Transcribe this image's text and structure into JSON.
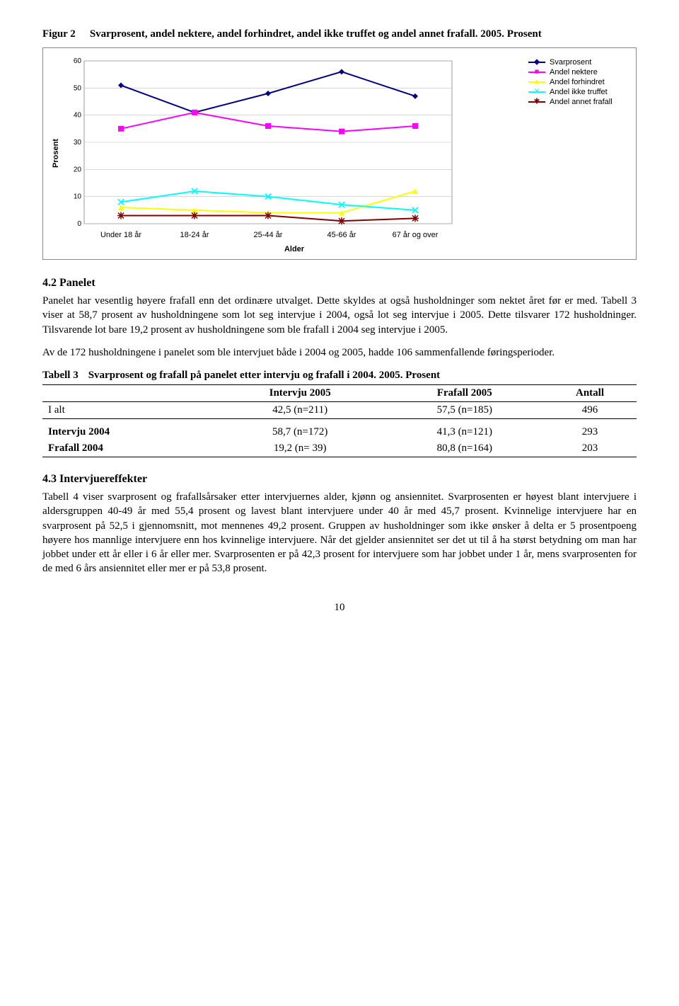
{
  "figure": {
    "label": "Figur 2",
    "caption": "Svarprosent, andel nektere, andel forhindret, andel ikke truffet og andel annet frafall. 2005. Prosent",
    "y_label": "Prosent",
    "x_label": "Alder",
    "categories": [
      "Under 18 år",
      "18-24 år",
      "25-44 år",
      "45-66 år",
      "67 år og over"
    ],
    "ylim": [
      0,
      60
    ],
    "ytick_step": 10,
    "background_color": "#ffffff",
    "grid_color": "#c0c0c0",
    "border_color": "#888888",
    "font_family": "Arial",
    "label_fontsize": 11,
    "series": [
      {
        "name": "Svarprosent",
        "color": "#000080",
        "marker": "diamond",
        "values": [
          51,
          41,
          48,
          56,
          47
        ]
      },
      {
        "name": "Andel nektere",
        "color": "#ff00ff",
        "marker": "square",
        "values": [
          35,
          41,
          36,
          34,
          36
        ]
      },
      {
        "name": "Andel forhindret",
        "color": "#ffff00",
        "marker": "triangle",
        "values": [
          6,
          5,
          4,
          4,
          12
        ]
      },
      {
        "name": "Andel ikke truffet",
        "color": "#00ffff",
        "marker": "x",
        "values": [
          8,
          12,
          10,
          7,
          5
        ]
      },
      {
        "name": "Andel annet frafall",
        "color": "#800000",
        "marker": "star",
        "values": [
          3,
          3,
          3,
          1,
          2
        ]
      }
    ]
  },
  "section42": {
    "heading": "4.2   Panelet",
    "p1": "Panelet har vesentlig høyere frafall enn det ordinære utvalget. Dette skyldes at også husholdninger som nektet året før er med. Tabell 3 viser at 58,7 prosent av husholdningene som lot seg intervjue i 2004, også lot seg intervjue i 2005. Dette tilsvarer 172 husholdninger. Tilsvarende lot bare 19,2 prosent av husholdningene som ble frafall i 2004 seg intervjue i 2005.",
    "p2": "Av de 172 husholdningene i panelet som ble intervjuet både i 2004 og 2005, hadde 106 sammenfallende føringsperioder."
  },
  "table3": {
    "label": "Tabell 3",
    "caption": "Svarprosent og frafall på panelet etter intervju og frafall i 2004. 2005. Prosent",
    "columns": [
      "",
      "Intervju 2005",
      "Frafall 2005",
      "Antall"
    ],
    "rows": [
      {
        "label": "I alt",
        "c1": "42,5 (n=211)",
        "c2": "57,5 (n=185)",
        "c3": "496"
      },
      {
        "label": "Intervju 2004",
        "c1": "58,7 (n=172)",
        "c2": "41,3 (n=121)",
        "c3": "293"
      },
      {
        "label": "Frafall 2004",
        "c1": "19,2 (n=  39)",
        "c2": "80,8 (n=164)",
        "c3": "203"
      }
    ]
  },
  "section43": {
    "heading": "4.3   Intervjuereffekter",
    "p1": "Tabell 4 viser svarprosent og frafallsårsaker etter intervjuernes alder, kjønn og ansiennitet. Svarprosenten er høyest blant intervjuere i aldersgruppen 40-49 år med 55,4 prosent og lavest blant intervjuere under 40 år med 45,7 prosent. Kvinnelige intervjuere har en svarprosent på 52,5 i gjennomsnitt, mot mennenes 49,2 prosent. Gruppen av husholdninger som ikke ønsker å delta er 5 prosentpoeng høyere hos mannlige intervjuere enn hos kvinnelige intervjuere. Når det gjelder ansiennitet ser det ut til å ha størst betydning om man har jobbet under ett år eller i 6 år eller mer. Svarprosenten er på 42,3 prosent for intervjuere som har jobbet under 1 år, mens svarprosenten for de med 6 års ansiennitet eller mer er på 53,8 prosent."
  },
  "page_number": "10"
}
